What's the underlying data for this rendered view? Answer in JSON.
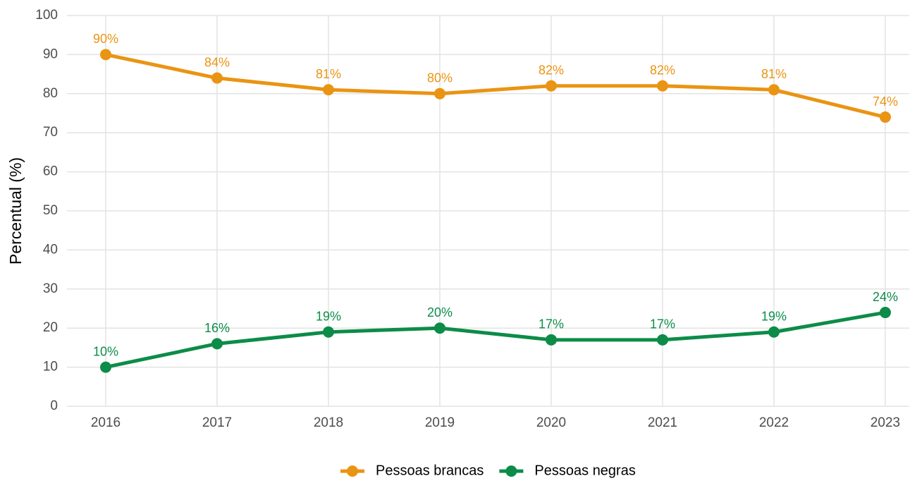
{
  "chart_data": {
    "type": "line",
    "y_label": "Percentual (%)",
    "categories": [
      "2016",
      "2017",
      "2018",
      "2019",
      "2020",
      "2021",
      "2022",
      "2023"
    ],
    "series": [
      {
        "name": "Pessoas brancas",
        "color": "#ea9413",
        "values": [
          90,
          84,
          81,
          80,
          82,
          82,
          81,
          74
        ],
        "value_labels": [
          "90%",
          "84%",
          "81%",
          "80%",
          "82%",
          "82%",
          "81%",
          "74%"
        ]
      },
      {
        "name": "Pessoas negras",
        "color": "#0c8c48",
        "values": [
          10,
          16,
          19,
          20,
          17,
          17,
          19,
          24
        ],
        "value_labels": [
          "10%",
          "16%",
          "19%",
          "20%",
          "17%",
          "17%",
          "19%",
          "24%"
        ]
      }
    ],
    "ylim": [
      0,
      100
    ],
    "yticks": [
      0,
      10,
      20,
      30,
      40,
      50,
      60,
      70,
      80,
      90,
      100
    ],
    "grid": true,
    "legend": "bottom"
  }
}
